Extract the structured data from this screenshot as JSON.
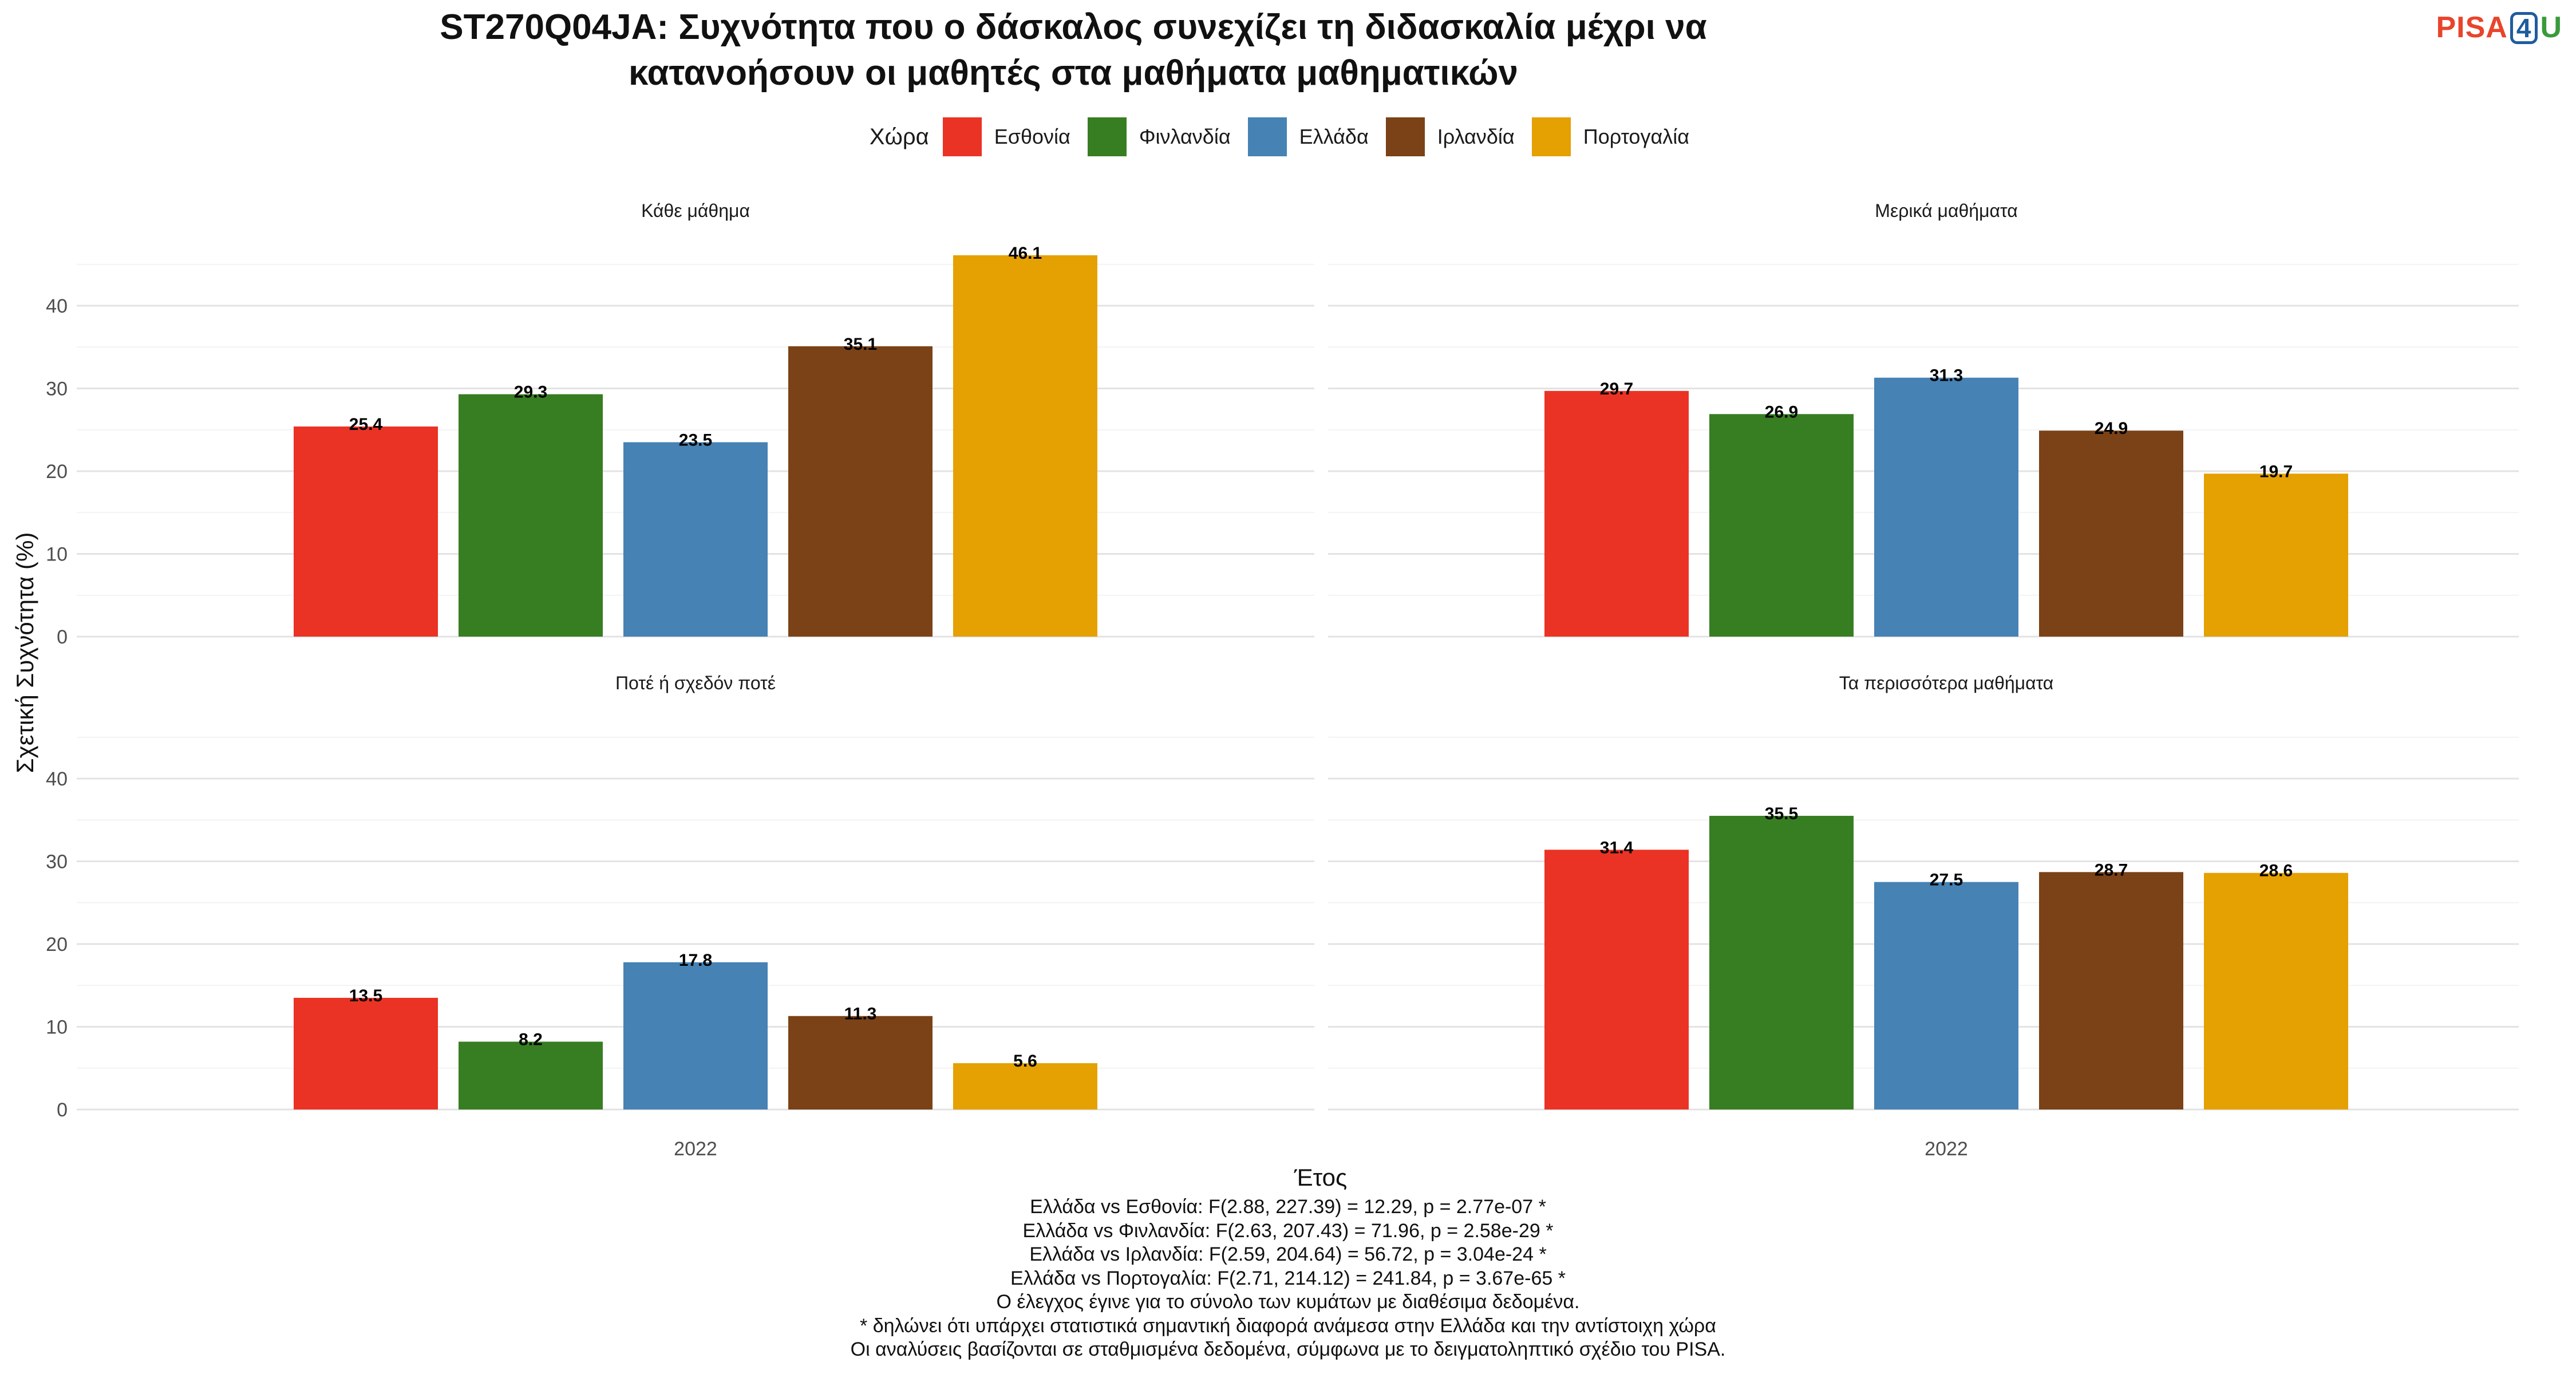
{
  "title_line1": "ST270Q04JA: Συχνότητα που ο δάσκαλος συνεχίζει τη διδασκαλία μέχρι να",
  "title_line2": "κατανοήσουν οι μαθητές στα μαθήματα μαθηματικών",
  "logo": {
    "part1": "PISA",
    "part2": "4",
    "part3": "U"
  },
  "legend_title": "Χώρα",
  "colors": {
    "Εσθονία": "#ea3324",
    "Φινλανδία": "#377e22",
    "Ελλάδα": "#4682b4",
    "Ιρλανδία": "#7a4216",
    "Πορτογαλία": "#e5a001"
  },
  "chart_data": {
    "type": "bar",
    "xlabel": "Έτος",
    "ylabel": "Σχετική Συχνότητα (%)",
    "ylim": [
      0,
      48
    ],
    "yticks": [
      0,
      10,
      20,
      30,
      40
    ],
    "x_category": "2022",
    "series_names": [
      "Εσθονία",
      "Φινλανδία",
      "Ελλάδα",
      "Ιρλανδία",
      "Πορτογαλία"
    ],
    "grid": true,
    "legend_position": "top",
    "panels": [
      {
        "title": "Κάθε μάθημα",
        "values": [
          25.4,
          29.3,
          23.5,
          35.1,
          46.1
        ]
      },
      {
        "title": "Μερικά μαθήματα",
        "values": [
          29.7,
          26.9,
          31.3,
          24.9,
          19.7
        ]
      },
      {
        "title": "Ποτέ ή σχεδόν ποτέ",
        "values": [
          13.5,
          8.2,
          17.8,
          11.3,
          5.6
        ]
      },
      {
        "title": "Τα περισσότερα μαθήματα",
        "values": [
          31.4,
          35.5,
          27.5,
          28.7,
          28.6
        ]
      }
    ]
  },
  "notes": [
    "Ελλάδα vs Εσθονία: F(2.88, 227.39) = 12.29, p = 2.77e-07 *",
    "Ελλάδα vs Φινλανδία: F(2.63, 207.43) = 71.96, p = 2.58e-29 *",
    "Ελλάδα vs Ιρλανδία: F(2.59, 204.64) = 56.72, p = 3.04e-24 *",
    "Ελλάδα vs Πορτογαλία: F(2.71, 214.12) = 241.84, p = 3.67e-65 *",
    "Ο έλεγχος έγινε για το σύνολο των κυμάτων με διαθέσιμα δεδομένα.",
    "* δηλώνει ότι υπάρχει στατιστικά σημαντική διαφορά ανάμεσα στην Ελλάδα και την αντίστοιχη χώρα",
    "Οι αναλύσεις βασίζονται σε σταθμισμένα δεδομένα, σύμφωνα με το δειγματοληπτικό σχέδιο του PISA."
  ]
}
